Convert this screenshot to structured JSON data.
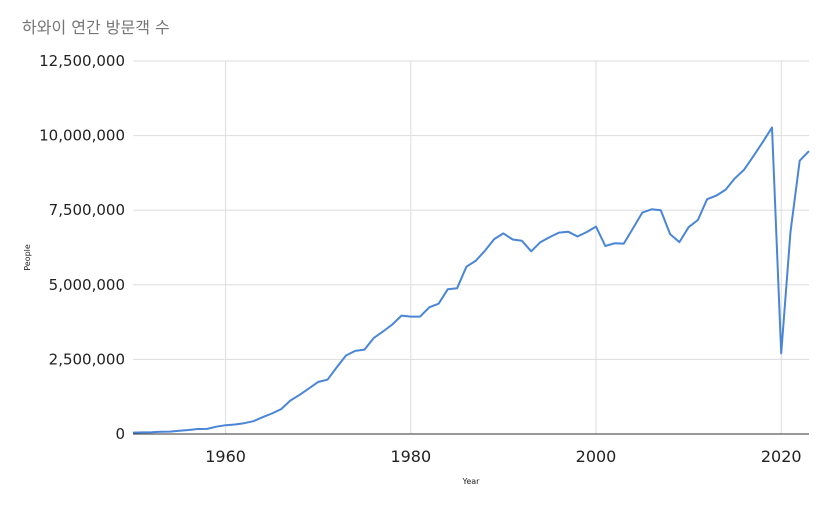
{
  "chart_data": {
    "type": "line",
    "title": "하와이 연간 방문객 수",
    "xlabel": "Year",
    "ylabel": "People",
    "xlim": [
      1950,
      2023
    ],
    "ylim": [
      0,
      12500000
    ],
    "x_ticks": [
      "1960",
      "1980",
      "2000",
      "2020"
    ],
    "y_ticks": [
      "0",
      "2,500,000",
      "5,000,000",
      "7,500,000",
      "10,000,000",
      "12,500,000"
    ],
    "grid": true,
    "legend": "none",
    "colors": {
      "line": "#4a86d6",
      "grid": "#dddddd",
      "baseline": "#333333",
      "title": "#757575"
    },
    "series": [
      {
        "x": [
          1950,
          1951,
          1952,
          1953,
          1954,
          1955,
          1956,
          1957,
          1958,
          1959,
          1960,
          1961,
          1962,
          1963,
          1964,
          1965,
          1966,
          1967,
          1968,
          1969,
          1970,
          1971,
          1972,
          1973,
          1974,
          1975,
          1976,
          1977,
          1978,
          1979,
          1980,
          1981,
          1982,
          1983,
          1984,
          1985,
          1986,
          1987,
          1988,
          1989,
          1990,
          1991,
          1992,
          1993,
          1994,
          1995,
          1996,
          1997,
          1998,
          1999,
          2000,
          2001,
          2002,
          2003,
          2004,
          2005,
          2006,
          2007,
          2008,
          2009,
          2010,
          2011,
          2012,
          2013,
          2014,
          2015,
          2016,
          2017,
          2018,
          2019,
          2020,
          2021,
          2022,
          2023
        ],
        "values": [
          46000,
          52000,
          60000,
          76000,
          81000,
          110000,
          133000,
          169000,
          172000,
          243000,
          296000,
          320000,
          362000,
          430000,
          563000,
          687000,
          835000,
          1124000,
          1315000,
          1527000,
          1746000,
          1819000,
          2233000,
          2631000,
          2786000,
          2829000,
          3220000,
          3434000,
          3670000,
          3967000,
          3935000,
          3934000,
          4247000,
          4368000,
          4852000,
          4884000,
          5606000,
          5800000,
          6140000,
          6530000,
          6723000,
          6519000,
          6473000,
          6124000,
          6430000,
          6600000,
          6750000,
          6780000,
          6620000,
          6770000,
          6950000,
          6300000,
          6390000,
          6380000,
          6900000,
          7420000,
          7530000,
          7500000,
          6700000,
          6430000,
          6930000,
          7170000,
          7870000,
          7990000,
          8190000,
          8570000,
          8860000,
          9310000,
          9780000,
          10270000,
          2700000,
          6780000,
          9160000,
          9480000
        ]
      }
    ]
  }
}
